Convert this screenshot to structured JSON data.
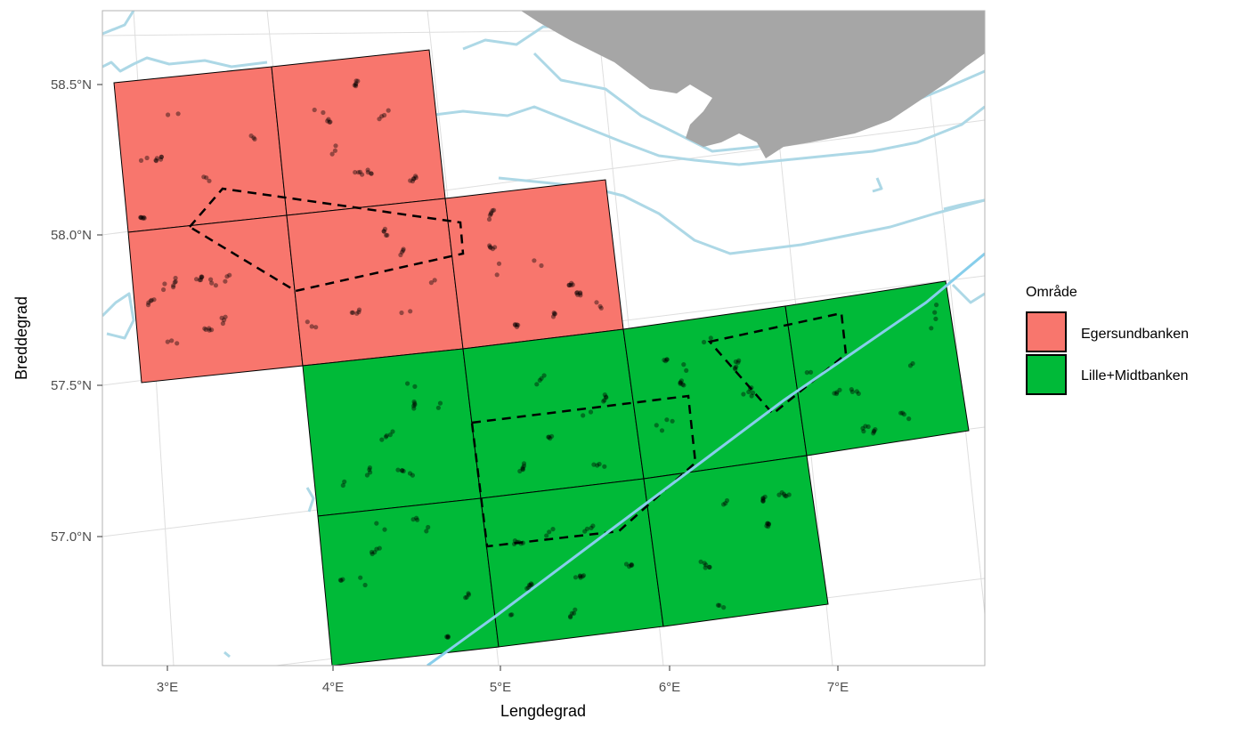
{
  "chart_data": {
    "type": "map",
    "xlabel": "Lengdegrad",
    "ylabel": "Breddegrad",
    "x_ticks": [
      "3°E",
      "4°E",
      "5°E",
      "6°E",
      "7°E"
    ],
    "y_ticks": [
      "58.5°N",
      "58.0°N",
      "57.5°N",
      "57.0°N"
    ],
    "lon_range": [
      2.62,
      7.85
    ],
    "lat_range": [
      56.57,
      58.74
    ],
    "legend": {
      "title": "Område",
      "position": "right",
      "entries": [
        {
          "label": "Egersundbanken",
          "color": "#F8766D"
        },
        {
          "label": "Lille+Midtbanken",
          "color": "#00BA38"
        }
      ]
    },
    "grid_squares": [
      {
        "area": "Egersundbanken",
        "lon": [
          3.0,
          4.0
        ],
        "lat": [
          58.5,
          58.0
        ]
      },
      {
        "area": "Egersundbanken",
        "lon": [
          4.0,
          5.0
        ],
        "lat": [
          58.5,
          58.0
        ]
      },
      {
        "area": "Egersundbanken",
        "lon": [
          3.0,
          4.0
        ],
        "lat": [
          58.0,
          57.5
        ]
      },
      {
        "area": "Egersundbanken",
        "lon": [
          4.0,
          5.0
        ],
        "lat": [
          58.0,
          57.5
        ]
      },
      {
        "area": "Egersundbanken",
        "lon": [
          5.0,
          6.0
        ],
        "lat": [
          58.0,
          57.5
        ]
      },
      {
        "area": "Lille+Midtbanken",
        "lon": [
          4.0,
          5.0
        ],
        "lat": [
          57.5,
          57.0
        ]
      },
      {
        "area": "Lille+Midtbanken",
        "lon": [
          5.0,
          6.0
        ],
        "lat": [
          57.5,
          57.0
        ]
      },
      {
        "area": "Lille+Midtbanken",
        "lon": [
          6.0,
          7.0
        ],
        "lat": [
          57.5,
          57.0
        ]
      },
      {
        "area": "Lille+Midtbanken",
        "lon": [
          7.0,
          8.0
        ],
        "lat": [
          57.5,
          57.0
        ]
      },
      {
        "area": "Lille+Midtbanken",
        "lon": [
          4.0,
          5.0
        ],
        "lat": [
          57.0,
          56.5
        ]
      },
      {
        "area": "Lille+Midtbanken",
        "lon": [
          5.0,
          6.0
        ],
        "lat": [
          57.0,
          56.5
        ]
      },
      {
        "area": "Lille+Midtbanken",
        "lon": [
          6.0,
          7.0
        ],
        "lat": [
          57.0,
          56.5
        ]
      }
    ],
    "colors": {
      "land": "#A6A6A6",
      "depth_contour": "#ADD8E6",
      "border_line": "#87CEEB",
      "grid": "#E0E0E0",
      "points": "#000000"
    }
  }
}
